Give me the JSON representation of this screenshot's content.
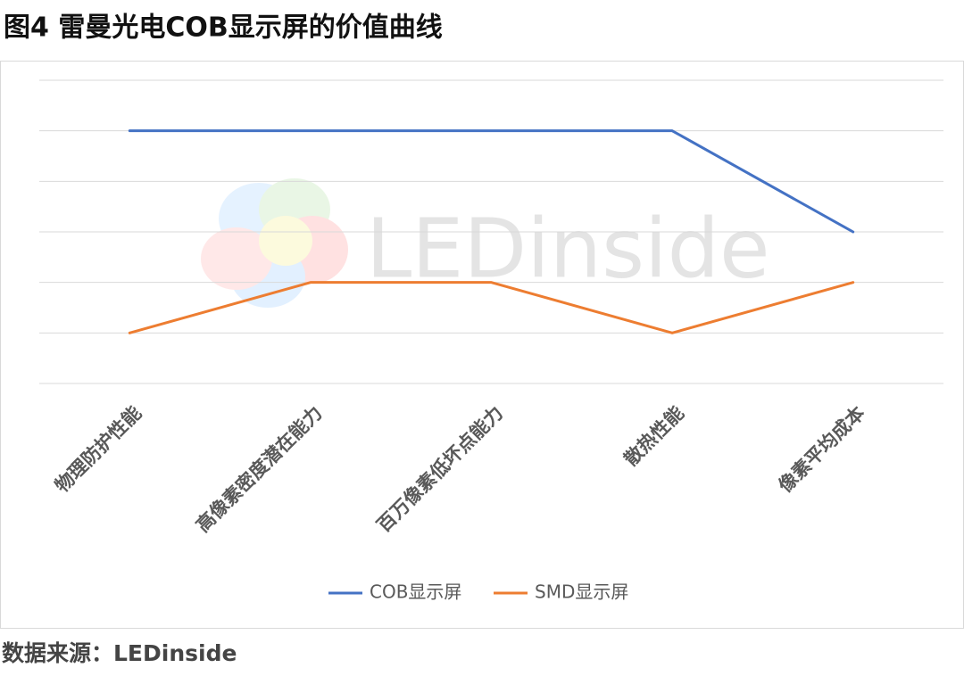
{
  "chart_data": {
    "type": "line",
    "title": "图4 雷曼光电COB显示屏的价值曲线",
    "source": "数据来源：LEDinside",
    "watermark": "LEDinside",
    "categories": [
      "物理防护性能",
      "高像素密度潜在能力",
      "百万像素低坏点能力",
      "散热性能",
      "像素平均成本"
    ],
    "series": [
      {
        "name": "COB显示屏",
        "color": "#4472c4",
        "values": [
          5,
          5,
          5,
          5,
          3
        ]
      },
      {
        "name": "SMD显示屏",
        "color": "#ed7d31",
        "values": [
          1,
          2,
          2,
          1,
          2
        ]
      }
    ],
    "ylim": [
      0,
      6
    ],
    "yticks": [
      0,
      1,
      2,
      3,
      4,
      5,
      6
    ],
    "show_tick_labels": false,
    "grid": true,
    "legend": "bottom"
  }
}
